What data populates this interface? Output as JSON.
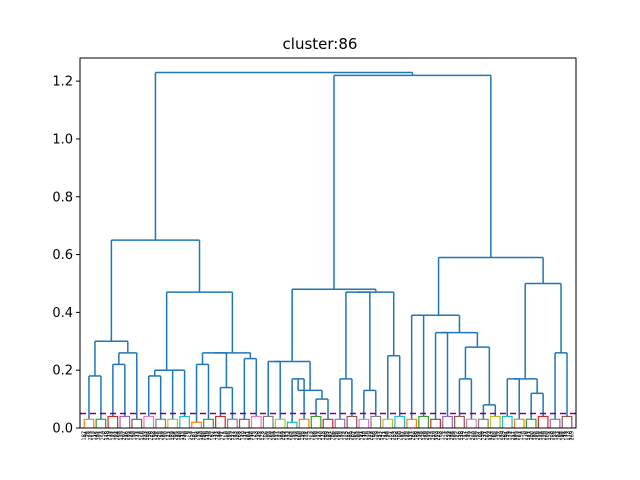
{
  "chart_data": {
    "type": "dendrogram",
    "title": "cluster:86",
    "xlabel": "",
    "ylabel": "",
    "ylim": [
      0,
      1.28
    ],
    "yticks": [
      "0.0",
      "0.2",
      "0.4",
      "0.6",
      "0.8",
      "1.0",
      "1.2"
    ],
    "ytick_values": [
      0,
      0.2,
      0.4,
      0.6,
      0.8,
      1.0,
      1.2
    ],
    "cut_threshold": 0.05,
    "cut_line_color": "#800080",
    "link_color_above_threshold": "#1f77b4",
    "cluster_colors": [
      "#ff7f0e",
      "#2ca02c",
      "#d62728",
      "#9467bd",
      "#8c564b",
      "#e377c2",
      "#7f7f7f",
      "#bcbd22",
      "#17becf"
    ],
    "grid": false,
    "merges": [
      {
        "id": "A1",
        "children": [
          "L:0.02",
          "L:0.02"
        ],
        "height": 0.3
      },
      {
        "id": "A2",
        "children": [
          "L:0.03",
          "L:0.03"
        ],
        "height": 0.18
      },
      {
        "id": "A3",
        "children": [
          "L:0.04",
          "L:0.04"
        ],
        "height": 0.22
      },
      {
        "id": "A4",
        "children": [
          "A3",
          "L:0.03"
        ],
        "height": 0.26
      },
      {
        "id": "A5",
        "children": [
          "A2",
          "A4"
        ],
        "height": 0.3
      },
      {
        "id": "A6",
        "children": [
          "L:0.04",
          "L:0.03"
        ],
        "height": 0.18
      },
      {
        "id": "A7",
        "children": [
          "L:0.03",
          "L:0.04"
        ],
        "height": 0.2
      },
      {
        "id": "A8",
        "children": [
          "A6",
          "A7"
        ],
        "height": 0.2
      },
      {
        "id": "A9",
        "children": [
          "L:0.02",
          "L:0.03"
        ],
        "height": 0.22
      },
      {
        "id": "A10",
        "children": [
          "L:0.04",
          "L:0.03"
        ],
        "height": 0.14
      },
      {
        "id": "A11",
        "children": [
          "A9",
          "A10"
        ],
        "height": 0.26
      },
      {
        "id": "A12",
        "children": [
          "L:0.03",
          "L:0.04"
        ],
        "height": 0.24
      },
      {
        "id": "A13",
        "children": [
          "A11",
          "A12"
        ],
        "height": 0.26
      },
      {
        "id": "A14",
        "children": [
          "A8",
          "A13"
        ],
        "height": 0.47
      },
      {
        "id": "A15",
        "children": [
          "A5",
          "A14"
        ],
        "height": 0.65
      },
      {
        "id": "B1",
        "children": [
          "L:0.04",
          "L:0.03"
        ],
        "height": 0.23
      },
      {
        "id": "B2",
        "children": [
          "L:0.02",
          "L:0.03"
        ],
        "height": 0.17
      },
      {
        "id": "B3",
        "children": [
          "L:0.04",
          "L:0.03"
        ],
        "height": 0.1
      },
      {
        "id": "B4",
        "children": [
          "B2",
          "B3"
        ],
        "height": 0.13
      },
      {
        "id": "B5",
        "children": [
          "B1",
          "B4"
        ],
        "height": 0.23
      },
      {
        "id": "B6",
        "children": [
          "L:0.03",
          "L:0.04"
        ],
        "height": 0.17
      },
      {
        "id": "B7",
        "children": [
          "L:0.03",
          "L:0.04"
        ],
        "height": 0.13
      },
      {
        "id": "B8",
        "children": [
          "B6",
          "B7"
        ],
        "height": 0.47
      },
      {
        "id": "B9",
        "children": [
          "L:0.03",
          "L:0.04"
        ],
        "height": 0.25
      },
      {
        "id": "B10",
        "children": [
          "B8",
          "B9"
        ],
        "height": 0.47
      },
      {
        "id": "B11",
        "children": [
          "B5",
          "B10"
        ],
        "height": 0.48
      },
      {
        "id": "B12",
        "children": [
          "L:0.03",
          "L:0.04"
        ],
        "height": 0.39
      },
      {
        "id": "B13",
        "children": [
          "L:0.03",
          "L:0.04"
        ],
        "height": 0.33
      },
      {
        "id": "B14",
        "children": [
          "L:0.04",
          "L:0.03"
        ],
        "height": 0.17
      },
      {
        "id": "B15",
        "children": [
          "L:0.03",
          "L:0.04"
        ],
        "height": 0.08
      },
      {
        "id": "B16",
        "children": [
          "B14",
          "B15"
        ],
        "height": 0.28
      },
      {
        "id": "B17",
        "children": [
          "B13",
          "B16"
        ],
        "height": 0.33
      },
      {
        "id": "B18",
        "children": [
          "B12",
          "B17"
        ],
        "height": 0.39
      },
      {
        "id": "B19",
        "children": [
          "L:0.04",
          "L:0.03"
        ],
        "height": 0.17
      },
      {
        "id": "B20",
        "children": [
          "L:0.03",
          "L:0.04"
        ],
        "height": 0.12
      },
      {
        "id": "B21",
        "children": [
          "B19",
          "B20"
        ],
        "height": 0.17
      },
      {
        "id": "B22",
        "children": [
          "L:0.03",
          "L:0.04"
        ],
        "height": 0.26
      },
      {
        "id": "B23",
        "children": [
          "B21",
          "B22"
        ],
        "height": 0.5
      },
      {
        "id": "B24",
        "children": [
          "B18",
          "B23"
        ],
        "height": 0.59
      },
      {
        "id": "B25",
        "children": [
          "B11",
          "B24"
        ],
        "height": 1.22
      },
      {
        "id": "R",
        "children": [
          "A15",
          "B25"
        ],
        "height": 1.23
      }
    ],
    "leaf_labels": [
      "187",
      "94",
      "28",
      "223",
      "13",
      "112",
      "45",
      "301",
      "77",
      "259",
      "6",
      "148",
      "219",
      "33",
      "171",
      "92",
      "264",
      "58",
      "133",
      "207",
      "16",
      "285",
      "124",
      "49",
      "190",
      "71",
      "242",
      "8",
      "156",
      "233",
      "101",
      "38",
      "276",
      "62",
      "199",
      "145",
      "25",
      "218",
      "87",
      "250",
      "11",
      "167",
      "130",
      "54",
      "295",
      "183",
      "40",
      "113",
      "226",
      "70",
      "9",
      "254",
      "137",
      "81",
      "202",
      "19",
      "160",
      "288",
      "46",
      "119",
      "238",
      "67",
      "174",
      "31",
      "212",
      "99",
      "271",
      "5",
      "150",
      "85",
      "229",
      "122",
      "43",
      "197",
      "268",
      "57",
      "140",
      "14",
      "281",
      "104",
      "216",
      "75",
      "163",
      "36",
      "247",
      "128",
      "2",
      "186",
      "93",
      "260",
      "51",
      "209",
      "117",
      "22",
      "177",
      "299",
      "64",
      "143",
      "234",
      "83",
      "155",
      "12",
      "278",
      "108",
      "195",
      "48",
      "221",
      "135",
      "3",
      "252",
      "89",
      "170",
      "27",
      "240",
      "115",
      "60",
      "293",
      "181",
      "42",
      "206",
      "96",
      "266",
      "18",
      "152",
      "73",
      "225",
      "127",
      "35",
      "289",
      "161",
      "55",
      "203",
      "91",
      "244",
      "10",
      "176",
      "120",
      "274",
      "66",
      "193",
      "39",
      "257",
      "142",
      "21",
      "214",
      "98",
      "167",
      "4",
      "283",
      "132",
      "59",
      "200",
      "87",
      "236",
      "15",
      "166",
      "111",
      "262",
      "50",
      "188",
      "34",
      "246",
      "126",
      "79",
      "298",
      "172",
      "23",
      "210",
      "103",
      "270",
      "63",
      "158",
      "1",
      "227",
      "139",
      "44",
      "296",
      "184",
      "72",
      "255",
      "118",
      "29",
      "217",
      "97",
      "149",
      "7",
      "280",
      "136",
      "52",
      "201",
      "90",
      "237",
      "17",
      "169",
      "114",
      "263",
      "65",
      "196",
      "37",
      "249",
      "129",
      "82",
      "291",
      "179",
      "24",
      "211",
      "105",
      "273",
      "61",
      "154",
      "0",
      "230",
      "141",
      "47",
      "300",
      "185",
      "76",
      "258",
      "121",
      "30",
      "220",
      "100",
      "151",
      "8",
      "286",
      "134",
      "53",
      "204",
      "88",
      "241",
      "19",
      "173",
      "116",
      "269"
    ]
  }
}
